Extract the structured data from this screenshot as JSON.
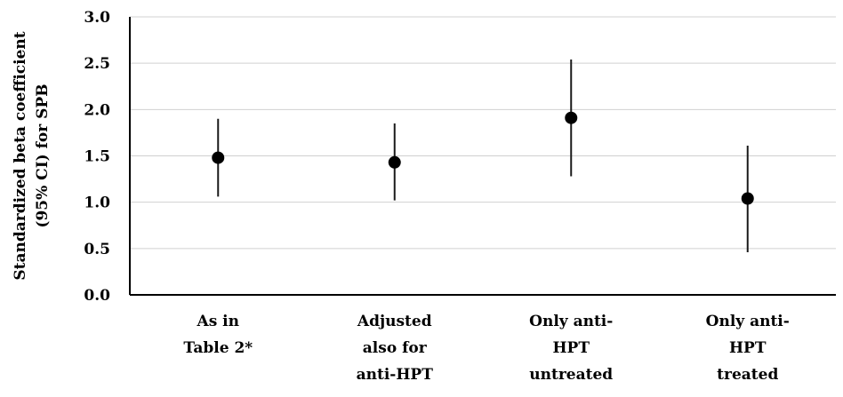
{
  "chart_data": {
    "type": "scatter",
    "subtype": "point-with-error-bars",
    "title": "",
    "xlabel": "",
    "ylabel_lines": [
      "Standardized beta coefficient",
      "(95% CI) for SPB"
    ],
    "ylim": [
      0.0,
      3.0
    ],
    "yticks": [
      "0.0",
      "0.5",
      "1.0",
      "1.5",
      "2.0",
      "2.5",
      "3.0"
    ],
    "grid": true,
    "legend": "none",
    "categories": [
      {
        "lines": [
          "As in",
          "Table 2*"
        ]
      },
      {
        "lines": [
          "Adjusted",
          "also for",
          "anti-HPT"
        ]
      },
      {
        "lines": [
          "Only anti-",
          "HPT",
          "untreated"
        ]
      },
      {
        "lines": [
          "Only anti-",
          "HPT",
          "treated"
        ]
      }
    ],
    "values": [
      1.48,
      1.43,
      1.91,
      1.04
    ],
    "ci_lower": [
      1.06,
      1.02,
      1.28,
      0.46
    ],
    "ci_upper": [
      1.9,
      1.85,
      2.54,
      1.61
    ],
    "colors": {
      "marker": "#000000",
      "errorbar": "#1a1a1a",
      "grid": "#d0d0d0",
      "axis": "#000000"
    }
  }
}
